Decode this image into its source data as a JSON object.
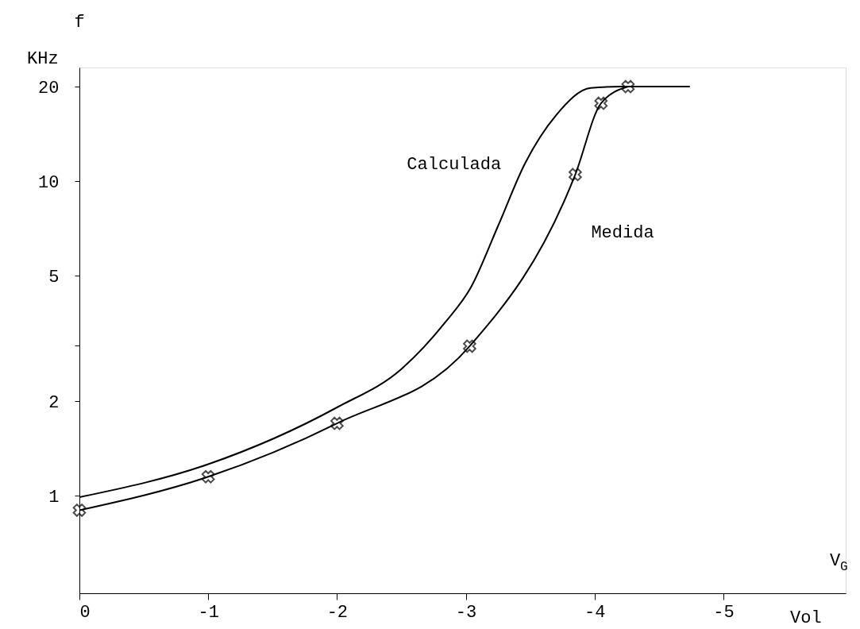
{
  "chart_data": {
    "type": "line",
    "ylabel": "f",
    "xlabel": "V$_{G}$",
    "annotations": [
      "KHz",
      "Vol"
    ],
    "log": "y",
    "grid": false,
    "legend": false,
    "line_style": "solid",
    "xlim": [
      0,
      -5.95
    ],
    "xticks": [
      0,
      -1,
      -2,
      -3,
      -4,
      -5
    ],
    "ylim": [
      0.49,
      23
    ],
    "yticks": [
      1,
      2,
      {
        "value": 3,
        "label": null
      },
      5,
      10,
      20
    ],
    "series": [
      {
        "name": "Calculada",
        "color": "#000000",
        "marker": "none",
        "x": [
          0,
          -1,
          -2,
          -2.5,
          -2.84,
          -3.04,
          -3.25,
          -3.46,
          -3.7,
          -3.97,
          -4.2,
          -4.74
        ],
        "values": [
          0.99,
          1.26,
          1.91,
          2.53,
          3.56,
          4.6,
          7.2,
          11.4,
          16.2,
          19.8,
          20,
          20
        ]
      },
      {
        "name": "Medida",
        "color": "#000000",
        "marker": "cross",
        "x": [
          0,
          -1,
          -2,
          -3.03,
          -3.85,
          -4.05,
          -4.26
        ],
        "values": [
          0.9,
          1.15,
          1.7,
          2.99,
          10.5,
          17.7,
          20
        ]
      }
    ]
  }
}
